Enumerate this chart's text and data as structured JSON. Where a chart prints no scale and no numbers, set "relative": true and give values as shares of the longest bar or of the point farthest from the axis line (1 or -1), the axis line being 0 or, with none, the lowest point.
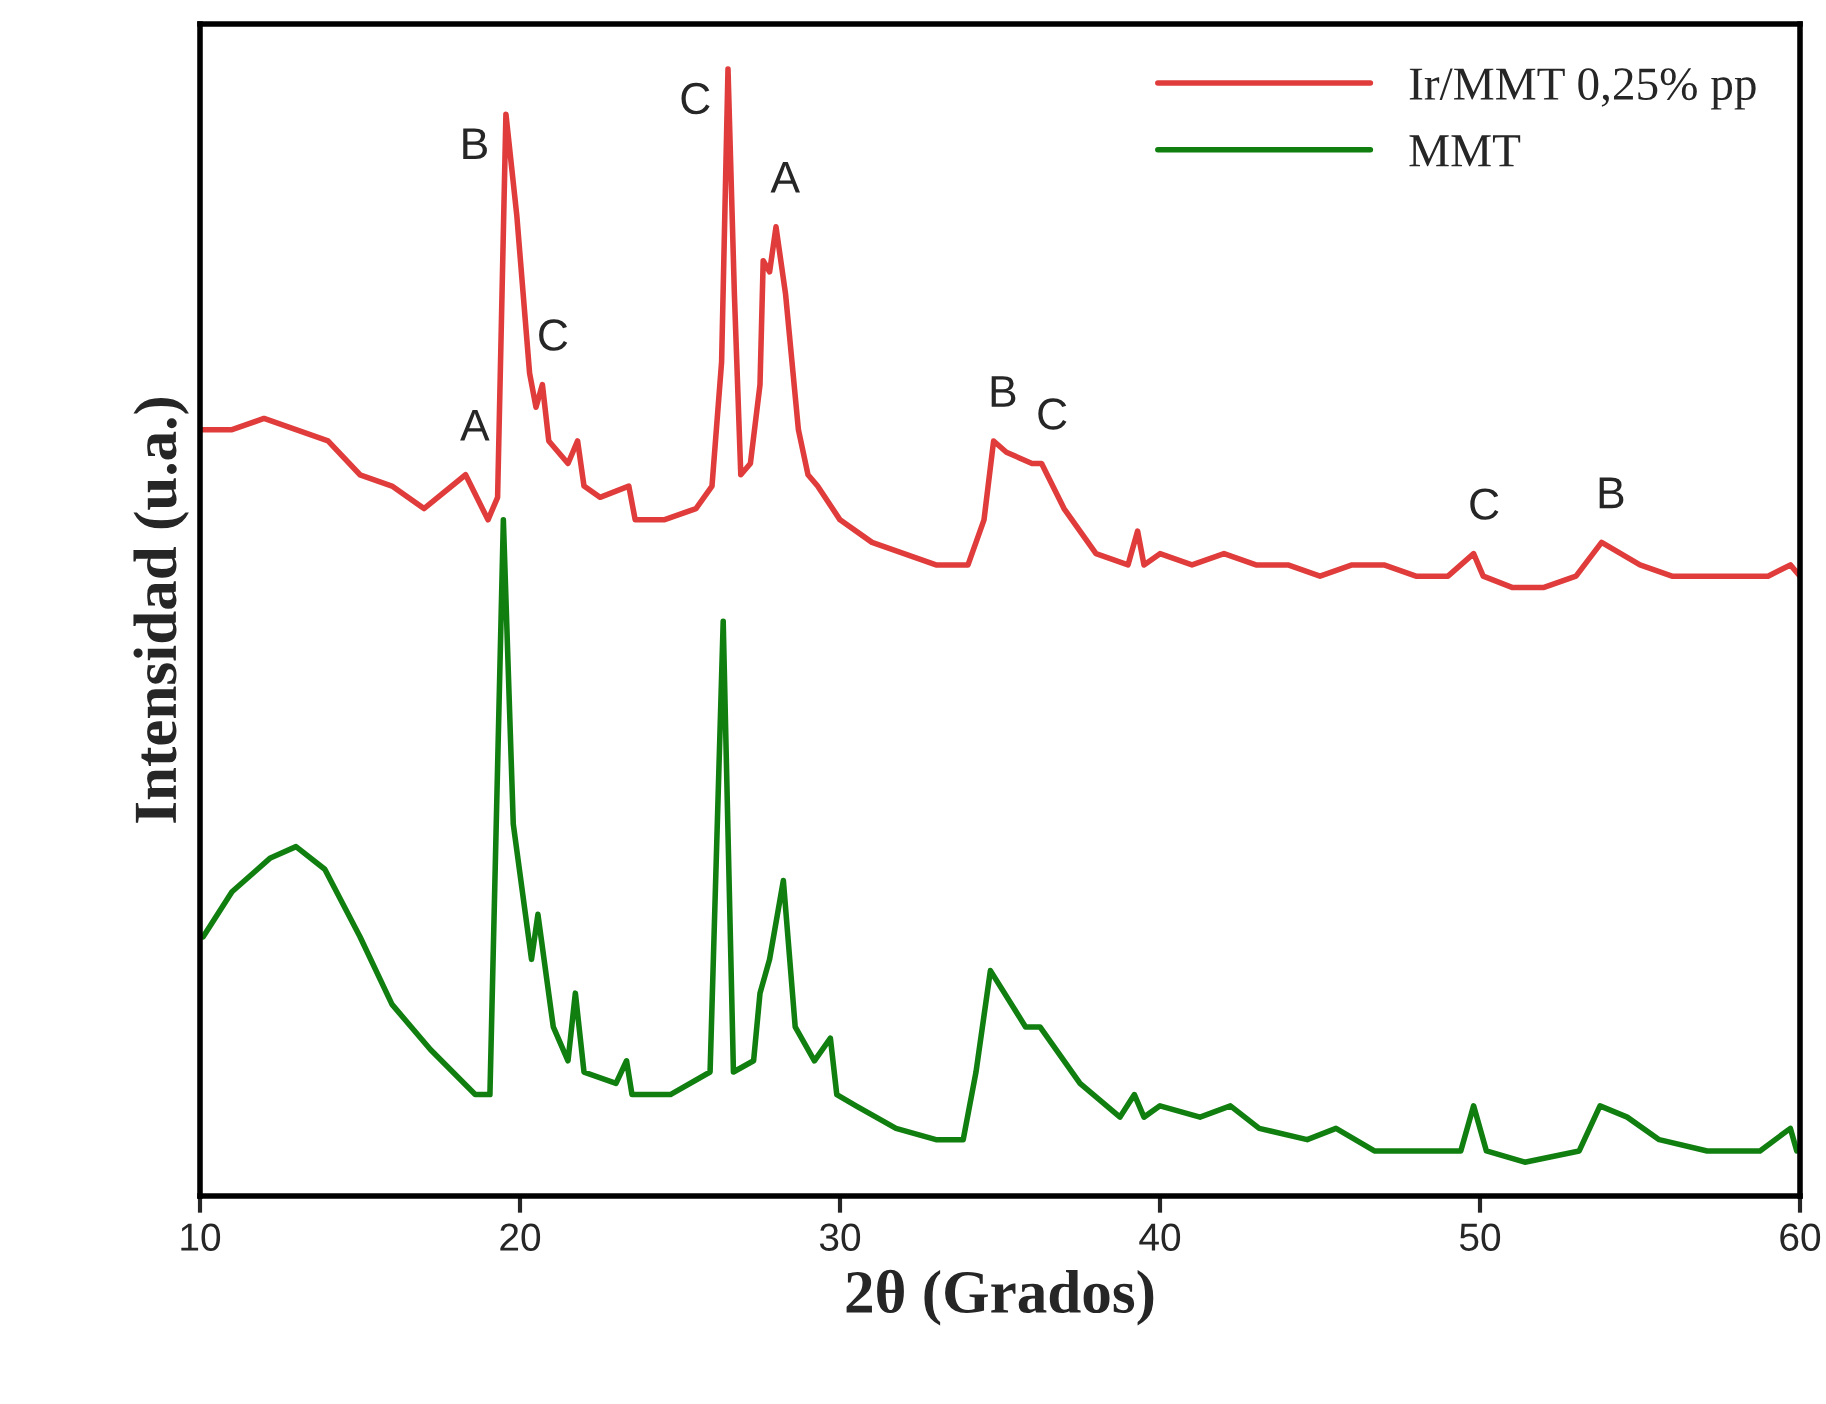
{
  "chart_data": {
    "type": "line",
    "relative": true,
    "xlabel": "2θ (Grados)",
    "ylabel": "Intensidad (u.a.)",
    "xlim": [
      10,
      60
    ],
    "xticks": [
      10,
      20,
      30,
      40,
      50,
      60
    ],
    "tick_labels": "x",
    "grid": false,
    "legend": "top right",
    "series": [
      {
        "name": "Ir/MMT 0,25% pp",
        "color": "#e03c3c",
        "x": [
          10,
          11,
          12,
          13,
          14,
          15,
          16,
          17,
          18.3,
          19,
          19.3,
          19.56,
          19.9,
          20.3,
          20.5,
          20.7,
          20.9,
          21.5,
          21.8,
          22,
          22.5,
          23.4,
          23.6,
          24.5,
          25.5,
          26,
          26.3,
          26.5,
          26.7,
          26.9,
          27.2,
          27.5,
          27.6,
          27.8,
          28,
          28.3,
          28.7,
          29,
          29.3,
          30,
          31,
          32,
          33,
          34,
          34.5,
          34.8,
          35.2,
          36,
          36.3,
          37,
          38,
          39,
          39.3,
          39.5,
          40,
          41,
          42,
          43,
          44,
          45,
          46,
          47,
          48,
          49,
          49.8,
          50.1,
          51,
          52,
          53,
          53.8,
          55,
          56,
          57,
          58,
          59,
          59.7,
          60
        ],
        "values": [
          0.68,
          0.68,
          0.69,
          0.68,
          0.67,
          0.64,
          0.63,
          0.61,
          0.64,
          0.6,
          0.62,
          0.96,
          0.87,
          0.73,
          0.7,
          0.72,
          0.67,
          0.65,
          0.67,
          0.63,
          0.62,
          0.63,
          0.6,
          0.6,
          0.61,
          0.63,
          0.74,
          1.0,
          0.8,
          0.64,
          0.65,
          0.72,
          0.83,
          0.82,
          0.86,
          0.8,
          0.68,
          0.64,
          0.63,
          0.6,
          0.58,
          0.57,
          0.56,
          0.56,
          0.6,
          0.67,
          0.66,
          0.65,
          0.65,
          0.61,
          0.57,
          0.56,
          0.59,
          0.56,
          0.57,
          0.56,
          0.57,
          0.56,
          0.56,
          0.55,
          0.56,
          0.56,
          0.55,
          0.55,
          0.57,
          0.55,
          0.54,
          0.54,
          0.55,
          0.58,
          0.56,
          0.55,
          0.55,
          0.55,
          0.55,
          0.56,
          0.55
        ]
      },
      {
        "name": "MMT",
        "color": "#107f10",
        "x": [
          10.1,
          11,
          12.2,
          13,
          13.9,
          15,
          16,
          17.2,
          18.6,
          19.06,
          19.48,
          19.79,
          20.36,
          20.56,
          21.04,
          21.5,
          21.73,
          22,
          23,
          23.33,
          23.5,
          24.7,
          25.94,
          26.35,
          26.67,
          27.3,
          27.5,
          27.8,
          28.23,
          28.6,
          29.2,
          29.7,
          29.9,
          30.5,
          31.75,
          33,
          33.85,
          34.25,
          34.7,
          35.8,
          36.25,
          37.5,
          38.75,
          39.2,
          39.5,
          40,
          41.25,
          42.2,
          43.1,
          44.6,
          45.5,
          46.7,
          48.3,
          49.4,
          49.8,
          50.2,
          51.4,
          53.1,
          53.75,
          54.6,
          55.6,
          57.1,
          58.75,
          59.7,
          59.9
        ],
        "values": [
          0.23,
          0.27,
          0.3,
          0.31,
          0.29,
          0.23,
          0.17,
          0.13,
          0.09,
          0.09,
          0.6,
          0.33,
          0.21,
          0.25,
          0.15,
          0.12,
          0.18,
          0.11,
          0.1,
          0.12,
          0.09,
          0.09,
          0.11,
          0.51,
          0.11,
          0.12,
          0.18,
          0.21,
          0.28,
          0.15,
          0.12,
          0.14,
          0.09,
          0.08,
          0.06,
          0.05,
          0.05,
          0.11,
          0.2,
          0.15,
          0.15,
          0.1,
          0.07,
          0.09,
          0.07,
          0.08,
          0.07,
          0.08,
          0.06,
          0.05,
          0.06,
          0.04,
          0.04,
          0.04,
          0.08,
          0.04,
          0.03,
          0.04,
          0.08,
          0.07,
          0.05,
          0.04,
          0.04,
          0.06,
          0.04
        ]
      }
    ],
    "annotations": [
      {
        "text": "A",
        "x": 18.3,
        "y": 0.64
      },
      {
        "text": "B",
        "x": 19.56,
        "y": 0.96
      },
      {
        "text": "C",
        "x": 20.7,
        "y": 0.72
      },
      {
        "text": "C",
        "x": 26.5,
        "y": 1.0
      },
      {
        "text": "A",
        "x": 28,
        "y": 0.86
      },
      {
        "text": "B",
        "x": 34.8,
        "y": 0.67
      },
      {
        "text": "C",
        "x": 36.3,
        "y": 0.65
      },
      {
        "text": "C",
        "x": 49.8,
        "y": 0.57
      },
      {
        "text": "B",
        "x": 53.8,
        "y": 0.58
      }
    ]
  }
}
